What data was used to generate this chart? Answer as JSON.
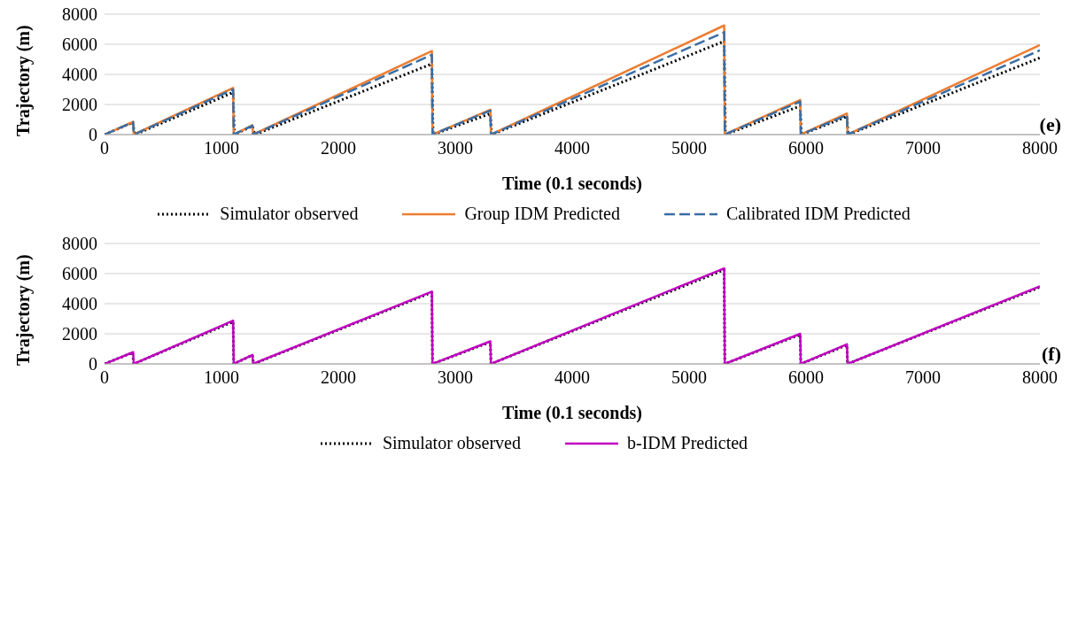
{
  "chart_data": [
    {
      "type": "line",
      "xlabel": "Time (0.1 seconds)",
      "ylabel": "Trajectory (m)",
      "annotations": [
        "(e)"
      ],
      "xlim": [
        0,
        8000
      ],
      "xticks": [
        0,
        1000,
        2000,
        3000,
        4000,
        5000,
        6000,
        7000,
        8000
      ],
      "ylim": [
        0,
        8000
      ],
      "yticks": [
        0,
        2000,
        4000,
        6000,
        8000
      ],
      "grid": "y",
      "legend": "bottom",
      "marker": "none",
      "series": [
        {
          "name": "Simulator observed",
          "color": "#000000",
          "line_style": "dotted",
          "x": [
            0,
            240,
            260,
            1100,
            1110,
            1265,
            1285,
            2800,
            2810,
            3300,
            3310,
            5300,
            5310,
            5950,
            5960,
            6350,
            6360,
            8000
          ],
          "values": [
            0,
            800,
            0,
            2800,
            0,
            560,
            0,
            4700,
            0,
            1400,
            0,
            6200,
            0,
            1900,
            0,
            1200,
            0,
            5100
          ]
        },
        {
          "name": "Group IDM Predicted",
          "color": "#ed7d31",
          "line_style": "solid",
          "x": [
            0,
            245,
            250,
            1100,
            1105,
            1265,
            1270,
            2800,
            2805,
            3300,
            3305,
            5300,
            5305,
            5950,
            5955,
            6350,
            6355,
            8000
          ],
          "values": [
            0,
            850,
            0,
            3100,
            0,
            620,
            0,
            5550,
            0,
            1650,
            0,
            7250,
            0,
            2300,
            0,
            1400,
            0,
            5950
          ]
        },
        {
          "name": "Calibrated IDM Predicted",
          "color": "#3a6ea5",
          "line_style": "dashed",
          "x": [
            0,
            245,
            250,
            1100,
            1105,
            1265,
            1270,
            2800,
            2805,
            3300,
            3305,
            5300,
            5305,
            5950,
            5955,
            6350,
            6355,
            8000
          ],
          "values": [
            0,
            830,
            0,
            3000,
            0,
            600,
            0,
            5300,
            0,
            1600,
            0,
            6800,
            0,
            2200,
            0,
            1300,
            0,
            5600
          ]
        }
      ]
    },
    {
      "type": "line",
      "xlabel": "Time (0.1 seconds)",
      "ylabel": "Trajectory (m)",
      "annotations": [
        "(f)"
      ],
      "xlim": [
        0,
        8000
      ],
      "xticks": [
        0,
        1000,
        2000,
        3000,
        4000,
        5000,
        6000,
        7000,
        8000
      ],
      "ylim": [
        0,
        8000
      ],
      "yticks": [
        0,
        2000,
        4000,
        6000,
        8000
      ],
      "grid": "y",
      "legend": "bottom",
      "marker": "none",
      "series": [
        {
          "name": "Simulator observed",
          "color": "#000000",
          "line_style": "dotted",
          "x": [
            0,
            240,
            250,
            1100,
            1105,
            1265,
            1275,
            2800,
            2805,
            3300,
            3305,
            5300,
            5305,
            5950,
            5955,
            6350,
            6355,
            8000
          ],
          "values": [
            0,
            750,
            0,
            2800,
            0,
            580,
            0,
            4750,
            0,
            1450,
            0,
            6250,
            0,
            1950,
            0,
            1250,
            0,
            5100
          ]
        },
        {
          "name": "b-IDM Predicted",
          "color": "#c000c0",
          "line_style": "solid",
          "x": [
            0,
            245,
            250,
            1100,
            1105,
            1265,
            1270,
            2800,
            2805,
            3300,
            3305,
            5300,
            5305,
            5950,
            5955,
            6350,
            6355,
            8000
          ],
          "values": [
            0,
            780,
            0,
            2870,
            0,
            600,
            0,
            4800,
            0,
            1500,
            0,
            6350,
            0,
            2000,
            0,
            1300,
            0,
            5150
          ]
        }
      ]
    }
  ]
}
